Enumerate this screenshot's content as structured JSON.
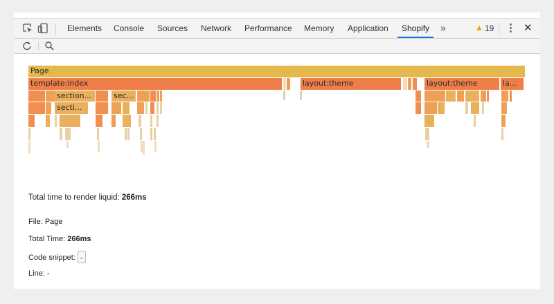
{
  "toolbar": {
    "tabs": [
      "Elements",
      "Console",
      "Sources",
      "Network",
      "Performance",
      "Memory",
      "Application",
      "Shopify"
    ],
    "active_tab": "Shopify",
    "more_label": "»",
    "warning_count": "19",
    "kebab_label": "⋮",
    "close_label": "✕"
  },
  "flame": {
    "page_label": "Page",
    "template_label": "template:index",
    "layout_label_1": "layout:theme",
    "layout_label_2": "layout:theme",
    "layout_label_3": "la...",
    "section_label_1": "section...",
    "section_label_2": "sec...",
    "section_label_3": "secti..."
  },
  "details": {
    "total_render_prefix": "Total time to render liquid: ",
    "total_render_value": "266ms",
    "file_label": "File: Page",
    "total_time_prefix": "Total Time: ",
    "total_time_value": "266ms",
    "code_snippet_label": "Code snippet:",
    "line_label": "Line: -"
  },
  "colors": {
    "active_tab_underline": "#1a73e8",
    "page_bar": "#e4b84c",
    "template_bar": "#ef7f49",
    "section_bar": "#eda056",
    "warning": "#e8a200"
  }
}
